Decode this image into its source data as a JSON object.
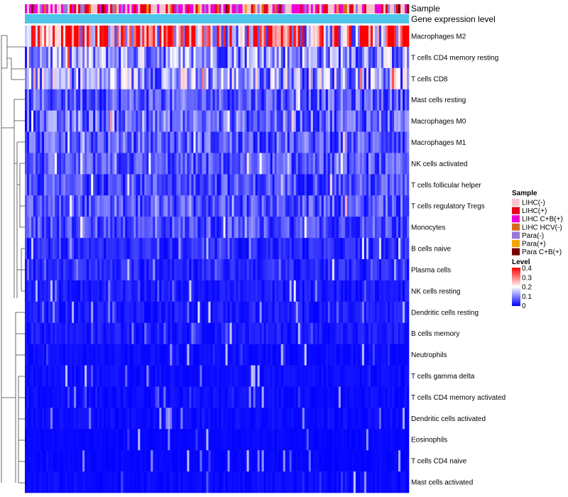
{
  "chart_data": {
    "type": "heatmap",
    "title": "",
    "annotation_tracks": [
      {
        "name": "Sample",
        "label": "Sample"
      },
      {
        "name": "Gene expression level",
        "label": "Gene expression level",
        "color": "#4fc3e8"
      }
    ],
    "rows": [
      {
        "label": "Macrophages M2",
        "level": 0.28
      },
      {
        "label": "T cells CD4 memory resting",
        "level": 0.12
      },
      {
        "label": "T cells CD8",
        "level": 0.13
      },
      {
        "label": "Mast cells resting",
        "level": 0.07
      },
      {
        "label": "Macrophages M0",
        "level": 0.08
      },
      {
        "label": "Macrophages M1",
        "level": 0.07
      },
      {
        "label": "NK cells activated",
        "level": 0.06
      },
      {
        "label": "T cells follicular helper",
        "level": 0.06
      },
      {
        "label": "T cells regulatory  Tregs",
        "level": 0.06
      },
      {
        "label": "Monocytes",
        "level": 0.06
      },
      {
        "label": "B cells naive",
        "level": 0.03
      },
      {
        "label": "Plasma cells",
        "level": 0.03
      },
      {
        "label": "NK cells resting",
        "level": 0.02
      },
      {
        "label": "Dendritic cells resting",
        "level": 0.02
      },
      {
        "label": "B cells memory",
        "level": 0.02
      },
      {
        "label": "Neutrophils",
        "level": 0.01
      },
      {
        "label": "T cells gamma delta",
        "level": 0.01
      },
      {
        "label": "T cells CD4 memory activated",
        "level": 0.01
      },
      {
        "label": "Dendritic cells activated",
        "level": 0.01
      },
      {
        "label": "Eosinophils",
        "level": 0.005
      },
      {
        "label": "T cells CD4 naive",
        "level": 0.005
      },
      {
        "label": "Mast cells activated",
        "level": 0.008
      }
    ],
    "legend_sample": {
      "title": "Sample",
      "items": [
        {
          "label": "LIHC(-)",
          "color": "#f9c4cd"
        },
        {
          "label": "LIHC(+)",
          "color": "#e8001b"
        },
        {
          "label": "LIHC C+B(+)",
          "color": "#f000d8"
        },
        {
          "label": "LIHC HCV(-)",
          "color": "#d86a16"
        },
        {
          "label": "Para(-)",
          "color": "#9a76d8"
        },
        {
          "label": "Para(+)",
          "color": "#f5a400"
        },
        {
          "label": "Para C+B(+)",
          "color": "#7a0000"
        }
      ]
    },
    "legend_level": {
      "title": "Level",
      "ticks": [
        "0.4",
        "0.3",
        "0.2",
        "0.1",
        "0"
      ],
      "range": [
        0,
        0.4
      ],
      "colors": [
        "#0000ff",
        "#ffffff",
        "#ff0000"
      ]
    },
    "dendrogram": "row-clustering"
  }
}
